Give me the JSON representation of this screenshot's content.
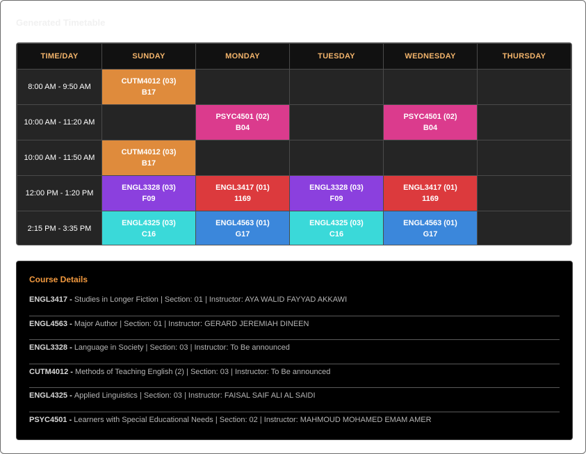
{
  "page": {
    "title": "Generated Timetable"
  },
  "timetable": {
    "headers": [
      "TIME/DAY",
      "SUNDAY",
      "MONDAY",
      "TUESDAY",
      "WEDNESDAY",
      "THURSDAY"
    ],
    "rows": [
      {
        "time": "8:00 AM - 9:50 AM",
        "cells": [
          {
            "code": "CUTM4012 (03)",
            "room": "B17",
            "color": "#df8b3c"
          },
          null,
          null,
          null,
          null
        ]
      },
      {
        "time": "10:00 AM - 11:20 AM",
        "cells": [
          null,
          {
            "code": "PSYC4501 (02)",
            "room": "B04",
            "color": "#db3b8d"
          },
          null,
          {
            "code": "PSYC4501 (02)",
            "room": "B04",
            "color": "#db3b8d"
          },
          null
        ]
      },
      {
        "time": "10:00 AM - 11:50 AM",
        "cells": [
          {
            "code": "CUTM4012 (03)",
            "room": "B17",
            "color": "#df8b3c"
          },
          null,
          null,
          null,
          null
        ]
      },
      {
        "time": "12:00 PM - 1:20 PM",
        "cells": [
          {
            "code": "ENGL3328 (03)",
            "room": "F09",
            "color": "#8b40de"
          },
          {
            "code": "ENGL3417 (01)",
            "room": "1169",
            "color": "#dc3a3d"
          },
          {
            "code": "ENGL3328 (03)",
            "room": "F09",
            "color": "#8b40de"
          },
          {
            "code": "ENGL3417 (01)",
            "room": "1169",
            "color": "#dc3a3d"
          },
          null
        ]
      },
      {
        "time": "2:15 PM - 3:35 PM",
        "cells": [
          {
            "code": "ENGL4325 (03)",
            "room": "C16",
            "color": "#3ad9d9"
          },
          {
            "code": "ENGL4563 (01)",
            "room": "G17",
            "color": "#3b87db"
          },
          {
            "code": "ENGL4325 (03)",
            "room": "C16",
            "color": "#3ad9d9"
          },
          {
            "code": "ENGL4563 (01)",
            "room": "G17",
            "color": "#3b87db"
          },
          null
        ]
      }
    ]
  },
  "course_details": {
    "title": "Course Details",
    "items": [
      {
        "code": "ENGL3417",
        "sep": " - ",
        "text": "Studies in Longer Fiction | Section: 01 | Instructor: AYA WALID FAYYAD AKKAWI"
      },
      {
        "code": "ENGL4563",
        "sep": " - ",
        "text": "Major Author | Section: 01 | Instructor: GERARD JEREMIAH DINEEN"
      },
      {
        "code": "ENGL3328",
        "sep": " - ",
        "text": "Language in Society | Section: 03 | Instructor: To Be announced"
      },
      {
        "code": "CUTM4012",
        "sep": " - ",
        "text": "Methods of Teaching English (2) | Section: 03 | Instructor: To Be announced"
      },
      {
        "code": "ENGL4325",
        "sep": " - ",
        "text": "Applied Linguistics | Section: 03 | Instructor: FAISAL SAIF ALI AL SAIDI"
      },
      {
        "code": "PSYC4501",
        "sep": " - ",
        "text": "Learners with Special Educational Needs | Section: 02 | Instructor: MAHMOUD MOHAMED EMAM AMER"
      }
    ]
  }
}
